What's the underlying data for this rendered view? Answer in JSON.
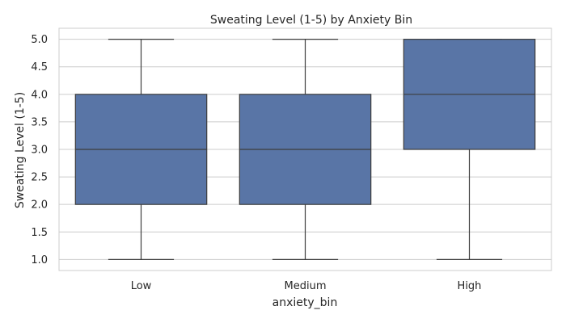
{
  "chart_data": {
    "type": "box",
    "title": "Sweating Level (1-5) by Anxiety Bin",
    "xlabel": "anxiety_bin",
    "ylabel": "Sweating Level (1-5)",
    "ylim": [
      0.8,
      5.2
    ],
    "yticks": [
      "1.0",
      "1.5",
      "2.0",
      "2.5",
      "3.0",
      "3.5",
      "4.0",
      "4.5",
      "5.0"
    ],
    "grid": true,
    "box_color": "#5975a6",
    "edge_color": "#3d3d3d",
    "categories": [
      "Low",
      "Medium",
      "High"
    ],
    "boxes": [
      {
        "category": "Low",
        "min": 1.0,
        "q1": 2.0,
        "median": 3.0,
        "q3": 4.0,
        "max": 5.0
      },
      {
        "category": "Medium",
        "min": 1.0,
        "q1": 2.0,
        "median": 3.0,
        "q3": 4.0,
        "max": 5.0
      },
      {
        "category": "High",
        "min": 1.0,
        "q1": 3.0,
        "median": 4.0,
        "q3": 5.0,
        "max": 5.0
      }
    ]
  }
}
